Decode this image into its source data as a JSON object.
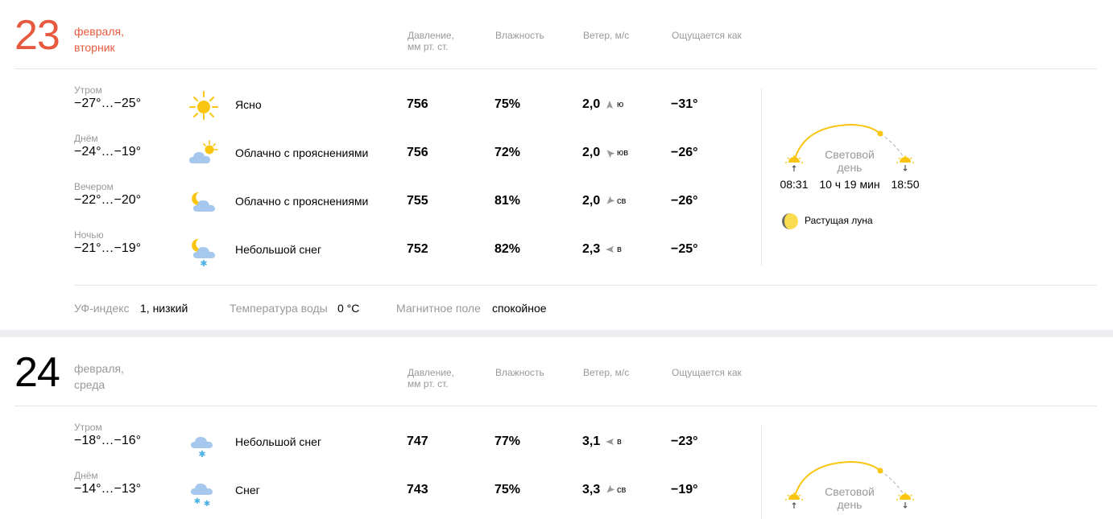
{
  "days": [
    {
      "num": "23",
      "date_line1": "февраля,",
      "date_line2": "вторник",
      "num_color": "#e85a3f",
      "headers": {
        "pressure_1": "Давление,",
        "pressure_2": "мм рт. ст.",
        "humidity": "Влажность",
        "wind": "Ветер, м/с",
        "feels": "Ощущается как"
      },
      "rows": [
        {
          "part": "Утром",
          "temp": "−27°…−25°",
          "icon": "sun-icon",
          "cond": "Ясно",
          "pressure": "756",
          "humidity": "75%",
          "wind": "2,0",
          "dir": "ю",
          "feels": "−31°"
        },
        {
          "part": "Днём",
          "temp": "−24°…−19°",
          "icon": "cloud-sun-icon",
          "cond": "Облачно с прояснениями",
          "pressure": "756",
          "humidity": "72%",
          "wind": "2,0",
          "dir": "юв",
          "feels": "−26°"
        },
        {
          "part": "Вечером",
          "temp": "−22°…−20°",
          "icon": "cloud-moon-icon",
          "cond": "Облачно с прояснениями",
          "pressure": "755",
          "humidity": "81%",
          "wind": "2,0",
          "dir": "св",
          "feels": "−26°"
        },
        {
          "part": "Ночью",
          "temp": "−21°…−19°",
          "icon": "cloud-moon-snow-icon",
          "cond": "Небольшой снег",
          "pressure": "752",
          "humidity": "82%",
          "wind": "2,3",
          "dir": "в",
          "feels": "−25°"
        }
      ],
      "sun": {
        "rise": "08:31",
        "day_line1": "Световой",
        "day_line2": "день",
        "length": "10 ч 19 мин",
        "set": "18:50"
      },
      "moon": "Растущая луна",
      "info": {
        "uv_label": "УФ-индекс",
        "uv_value": "1, низкий",
        "water_label": "Температура воды",
        "water_value": "0 °C",
        "mag_label": "Магнитное поле",
        "mag_value": "спокойное"
      }
    },
    {
      "num": "24",
      "date_line1": "февраля,",
      "date_line2": "среда",
      "num_color": "#000000",
      "headers": {
        "pressure_1": "Давление,",
        "pressure_2": "мм рт. ст.",
        "humidity": "Влажность",
        "wind": "Ветер, м/с",
        "feels": "Ощущается как"
      },
      "rows": [
        {
          "part": "Утром",
          "temp": "−18°…−16°",
          "icon": "cloud-snow-icon",
          "cond": "Небольшой снег",
          "pressure": "747",
          "humidity": "77%",
          "wind": "3,1",
          "dir": "в",
          "feels": "−23°"
        },
        {
          "part": "Днём",
          "temp": "−14°…−13°",
          "icon": "cloud-snow2-icon",
          "cond": "Снег",
          "pressure": "743",
          "humidity": "75%",
          "wind": "3,3",
          "dir": "св",
          "feels": "−19°"
        }
      ],
      "sun": {
        "day_line1": "Световой",
        "day_line2": "день"
      }
    }
  ],
  "colors": {
    "accent_red": "#e85a3f",
    "sun_yellow": "#f9c510",
    "cloud_blue": "#a6c8ef",
    "muted": "#999999"
  }
}
